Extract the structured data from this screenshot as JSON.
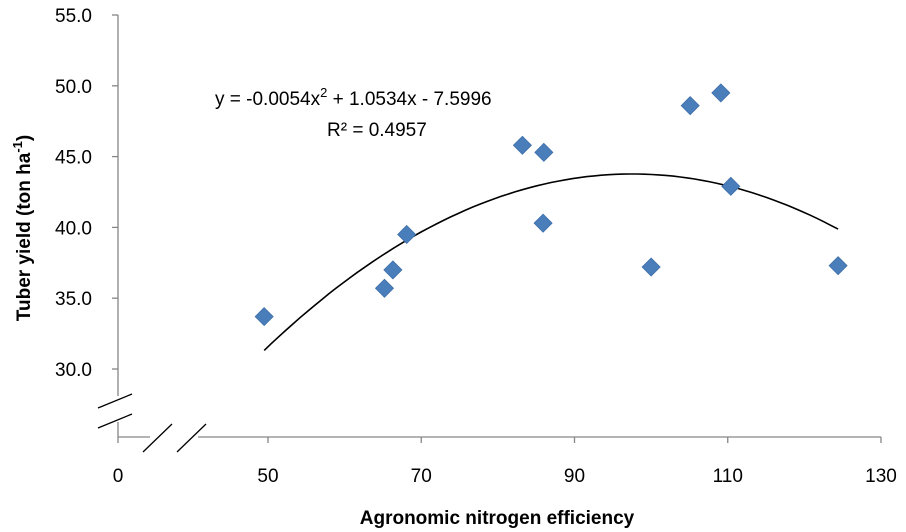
{
  "chart_data": {
    "type": "scatter",
    "xlabel": "Agronomic nitrogen efficiency",
    "ylabel_main": "Tuber yield (ton ha",
    "ylabel_sup": "-1",
    "ylabel_close": ")",
    "xlim": [
      50,
      130
    ],
    "ylim": [
      30,
      55
    ],
    "x_ticks": [
      50,
      70,
      90,
      110,
      130
    ],
    "x_tick_labels": [
      "50",
      "70",
      "90",
      "110",
      "130"
    ],
    "x_zero_label": "0",
    "y_ticks": [
      30,
      35,
      40,
      45,
      50,
      55
    ],
    "y_tick_labels": [
      "30.0",
      "35.0",
      "40.0",
      "45.0",
      "50.0",
      "55.0"
    ],
    "axis_breaks": true,
    "grid": false,
    "marker": "diamond",
    "marker_color": "#4a7ebb",
    "trendline_color": "#000000",
    "points": [
      {
        "x": 49.5,
        "y": 33.7
      },
      {
        "x": 65.2,
        "y": 35.7
      },
      {
        "x": 66.3,
        "y": 37.0
      },
      {
        "x": 68.1,
        "y": 39.5
      },
      {
        "x": 83.2,
        "y": 45.8
      },
      {
        "x": 86.0,
        "y": 45.3
      },
      {
        "x": 85.9,
        "y": 40.3
      },
      {
        "x": 100.0,
        "y": 37.2
      },
      {
        "x": 105.1,
        "y": 48.6
      },
      {
        "x": 109.1,
        "y": 49.5
      },
      {
        "x": 110.4,
        "y": 42.9
      },
      {
        "x": 124.4,
        "y": 37.3
      }
    ],
    "trendline": {
      "type": "polynomial",
      "coefficients": [
        -0.0054,
        1.0534,
        -7.5996
      ],
      "x_range": [
        49.5,
        124.4
      ],
      "equation_part1": "y = -0.0054x",
      "equation_sup": "2",
      "equation_part2": " + 1.0534x - 7.5996",
      "r2_label": "R² = 0.4957"
    }
  }
}
